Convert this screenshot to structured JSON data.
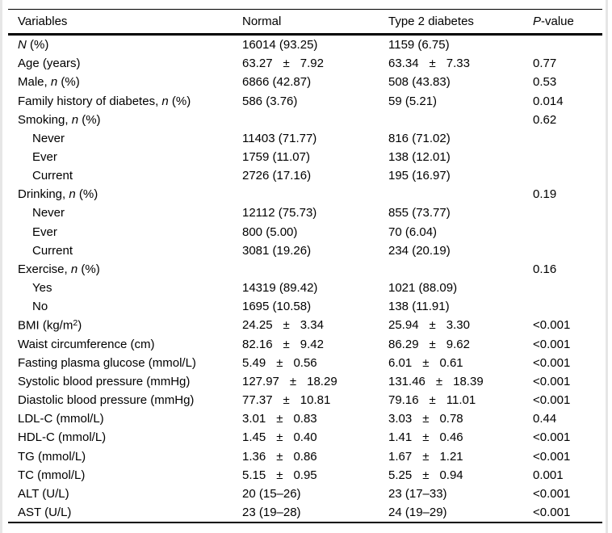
{
  "page": {
    "background": "#ffffff",
    "edge_shade_color": "#e6e6e6"
  },
  "table": {
    "text_color": "#000000",
    "rule_color": "#000000",
    "header": [
      {
        "key": "variables",
        "parts": [
          {
            "t": "Variables"
          }
        ]
      },
      {
        "key": "normal",
        "parts": [
          {
            "t": "Normal"
          }
        ]
      },
      {
        "key": "type2",
        "parts": [
          {
            "t": "Type 2 diabetes"
          }
        ]
      },
      {
        "key": "pvalue",
        "parts": [
          {
            "t": "P",
            "i": true
          },
          {
            "t": "-value"
          }
        ]
      }
    ],
    "rows": [
      {
        "label": [
          {
            "t": "N",
            "i": true
          },
          {
            "t": " (%)"
          }
        ],
        "indent": false,
        "normal": "16014 (93.25)",
        "type2": "1159 (6.75)",
        "p": ""
      },
      {
        "label": [
          {
            "t": "Age (years)"
          }
        ],
        "indent": false,
        "normal": "63.27 ± 7.92",
        "type2": "63.34 ± 7.33",
        "p": "0.77"
      },
      {
        "label": [
          {
            "t": "Male, "
          },
          {
            "t": "n",
            "i": true
          },
          {
            "t": " (%)"
          }
        ],
        "indent": false,
        "normal": "6866 (42.87)",
        "type2": "508 (43.83)",
        "p": "0.53"
      },
      {
        "label": [
          {
            "t": "Family history of diabetes, "
          },
          {
            "t": "n",
            "i": true
          },
          {
            "t": " (%)"
          }
        ],
        "indent": false,
        "normal": "586 (3.76)",
        "type2": "59 (5.21)",
        "p": "0.014"
      },
      {
        "label": [
          {
            "t": "Smoking, "
          },
          {
            "t": "n",
            "i": true
          },
          {
            "t": " (%)"
          }
        ],
        "indent": false,
        "normal": "",
        "type2": "",
        "p": "0.62"
      },
      {
        "label": [
          {
            "t": "Never"
          }
        ],
        "indent": true,
        "normal": "11403 (71.77)",
        "type2": "816 (71.02)",
        "p": ""
      },
      {
        "label": [
          {
            "t": "Ever"
          }
        ],
        "indent": true,
        "normal": "1759 (11.07)",
        "type2": "138 (12.01)",
        "p": ""
      },
      {
        "label": [
          {
            "t": "Current"
          }
        ],
        "indent": true,
        "normal": "2726 (17.16)",
        "type2": "195 (16.97)",
        "p": ""
      },
      {
        "label": [
          {
            "t": "Drinking, "
          },
          {
            "t": "n",
            "i": true
          },
          {
            "t": " (%)"
          }
        ],
        "indent": false,
        "normal": "",
        "type2": "",
        "p": "0.19"
      },
      {
        "label": [
          {
            "t": "Never"
          }
        ],
        "indent": true,
        "normal": "12112 (75.73)",
        "type2": "855 (73.77)",
        "p": ""
      },
      {
        "label": [
          {
            "t": "Ever"
          }
        ],
        "indent": true,
        "normal": "800 (5.00)",
        "type2": "70 (6.04)",
        "p": ""
      },
      {
        "label": [
          {
            "t": "Current"
          }
        ],
        "indent": true,
        "normal": "3081 (19.26)",
        "type2": "234 (20.19)",
        "p": ""
      },
      {
        "label": [
          {
            "t": "Exercise, "
          },
          {
            "t": "n",
            "i": true
          },
          {
            "t": " (%)"
          }
        ],
        "indent": false,
        "normal": "",
        "type2": "",
        "p": "0.16"
      },
      {
        "label": [
          {
            "t": "Yes"
          }
        ],
        "indent": true,
        "normal": "14319 (89.42)",
        "type2": "1021 (88.09)",
        "p": ""
      },
      {
        "label": [
          {
            "t": "No"
          }
        ],
        "indent": true,
        "normal": "1695 (10.58)",
        "type2": "138 (11.91)",
        "p": ""
      },
      {
        "label": [
          {
            "t": "BMI (kg/m"
          },
          {
            "t": "2",
            "sup": true
          },
          {
            "t": ")"
          }
        ],
        "indent": false,
        "normal": "24.25 ± 3.34",
        "type2": "25.94 ± 3.30",
        "p": "<0.001"
      },
      {
        "label": [
          {
            "t": "Waist circumference (cm)"
          }
        ],
        "indent": false,
        "normal": "82.16 ± 9.42",
        "type2": "86.29 ± 9.62",
        "p": "<0.001"
      },
      {
        "label": [
          {
            "t": "Fasting plasma glucose (mmol/L)"
          }
        ],
        "indent": false,
        "normal": "5.49 ± 0.56",
        "type2": "6.01 ± 0.61",
        "p": "<0.001"
      },
      {
        "label": [
          {
            "t": "Systolic blood pressure (mmHg)"
          }
        ],
        "indent": false,
        "normal": "127.97 ± 18.29",
        "type2": "131.46 ± 18.39",
        "p": "<0.001"
      },
      {
        "label": [
          {
            "t": "Diastolic blood pressure (mmHg)"
          }
        ],
        "indent": false,
        "normal": "77.37 ± 10.81",
        "type2": "79.16 ± 11.01",
        "p": "<0.001"
      },
      {
        "label": [
          {
            "t": "LDL-C (mmol/L)"
          }
        ],
        "indent": false,
        "normal": "3.01 ± 0.83",
        "type2": "3.03 ± 0.78",
        "p": "0.44"
      },
      {
        "label": [
          {
            "t": "HDL-C (mmol/L)"
          }
        ],
        "indent": false,
        "normal": "1.45 ± 0.40",
        "type2": "1.41 ± 0.46",
        "p": "<0.001"
      },
      {
        "label": [
          {
            "t": "TG (mmol/L)"
          }
        ],
        "indent": false,
        "normal": "1.36 ± 0.86",
        "type2": "1.67 ± 1.21",
        "p": "<0.001"
      },
      {
        "label": [
          {
            "t": "TC (mmol/L)"
          }
        ],
        "indent": false,
        "normal": "5.15 ± 0.95",
        "type2": "5.25 ± 0.94",
        "p": "0.001"
      },
      {
        "label": [
          {
            "t": "ALT (U/L)"
          }
        ],
        "indent": false,
        "normal": "20 (15–26)",
        "type2": "23 (17–33)",
        "p": "<0.001"
      },
      {
        "label": [
          {
            "t": "AST (U/L)"
          }
        ],
        "indent": false,
        "normal": "23 (19–28)",
        "type2": "24 (19–29)",
        "p": "<0.001"
      }
    ]
  }
}
